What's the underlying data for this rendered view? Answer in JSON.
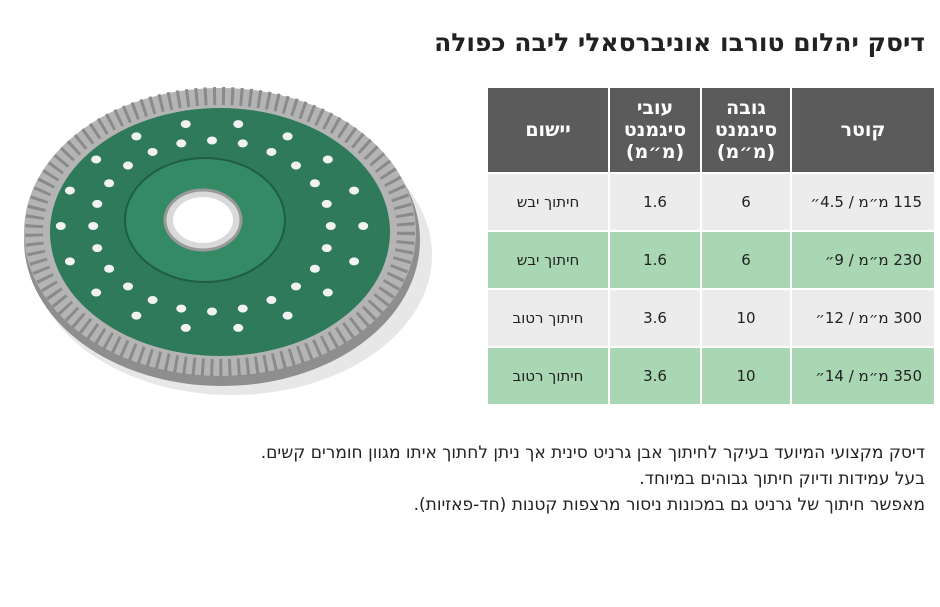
{
  "header": {
    "title": "דיסק יהלום טורבו אוניברסאלי ליבה כפולה"
  },
  "table": {
    "columns": [
      "קוטר",
      "גובה סיגמנט (מ״מ)",
      "עובי סיגמנט (מ״מ)",
      "יישום"
    ],
    "rows": [
      [
        "115 מ״מ / 4.5״",
        6,
        1.6,
        "חיתוך יבש"
      ],
      [
        "230 מ״מ / 9״",
        6,
        1.6,
        "חיתוך יבש"
      ],
      [
        "300 מ״מ / 12״",
        10,
        3.6,
        "חיתוך רטוב"
      ],
      [
        "350 מ״מ / 14״",
        10,
        3.6,
        "חיתוך רטוב"
      ]
    ]
  },
  "description": [
    "דיסק מקצועי המיועד בעיקר לחיתוך אבן גרניט סינית אך ניתן לחתוך איתו מגוון חומרים קשים.",
    "בעל עמידות ודיוק חיתוך גבוהים במיוחד.",
    "מאפשר חיתוך של גרניט גם במכונות ניסור מרצפות קטנות (חד-פאזיות)."
  ]
}
